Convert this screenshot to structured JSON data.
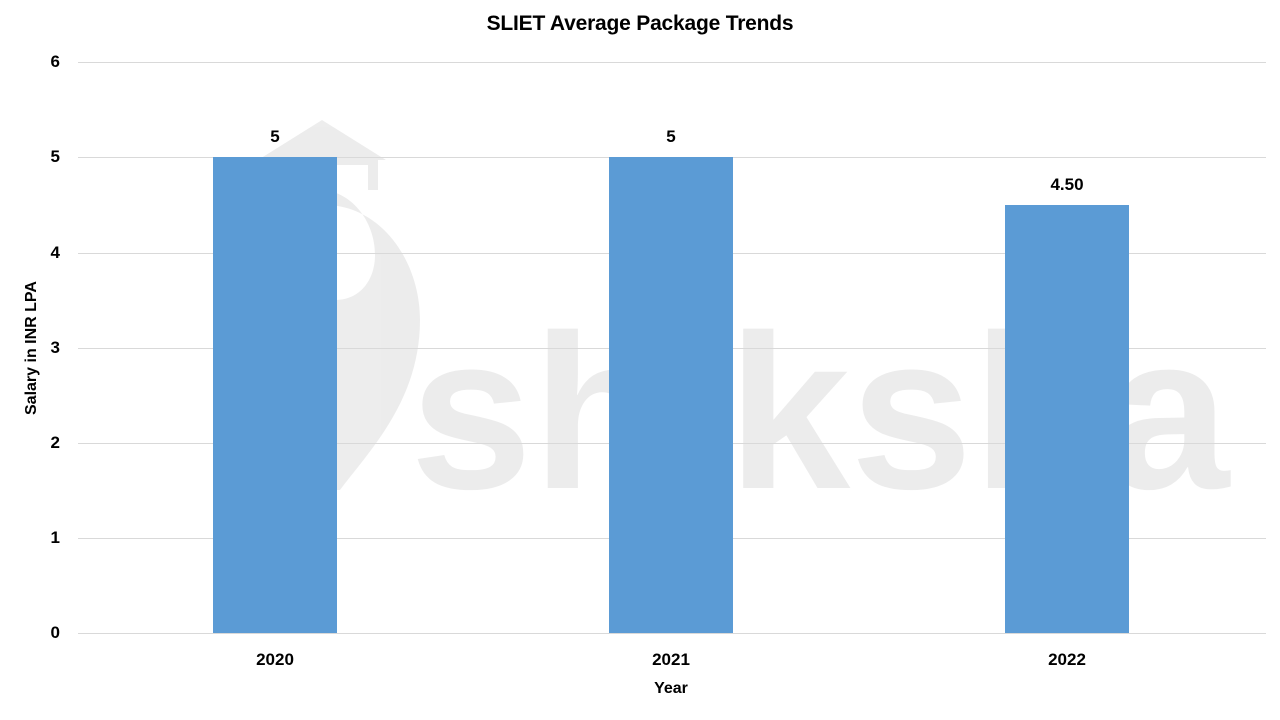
{
  "chart_data": {
    "type": "bar",
    "title": "SLIET Average Package Trends",
    "xlabel": "Year",
    "ylabel": "Salary in INR LPA",
    "categories": [
      "2020",
      "2021",
      "2022"
    ],
    "values": [
      5,
      5,
      4.5
    ],
    "data_labels": [
      "5",
      "5",
      "4.50"
    ],
    "ylim": [
      0,
      6
    ],
    "yticks": [
      "0",
      "1",
      "2",
      "3",
      "4",
      "5",
      "6"
    ],
    "grid": true,
    "legend": null,
    "bar_color": "#5B9BD5",
    "watermark": "shiksha"
  }
}
